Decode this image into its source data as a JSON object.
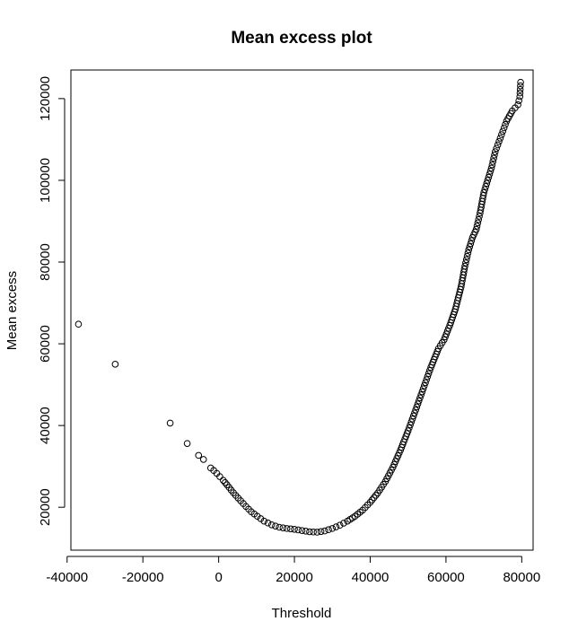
{
  "chart_data": {
    "type": "scatter",
    "title": "Mean excess plot",
    "xlabel": "Threshold",
    "ylabel": "Mean excess",
    "xlim": [
      -39000,
      83000
    ],
    "ylim": [
      9500,
      127000
    ],
    "xticks": [
      -40000,
      -20000,
      0,
      20000,
      40000,
      60000,
      80000
    ],
    "yticks": [
      20000,
      40000,
      60000,
      80000,
      100000,
      120000
    ],
    "grid": false,
    "legend": "none",
    "marker": "open-circle",
    "series": [
      {
        "points": [
          [
            -37000,
            64800
          ],
          [
            -27300,
            55000
          ],
          [
            -12800,
            40600
          ],
          [
            -8300,
            35600
          ],
          [
            -5300,
            32700
          ],
          [
            -4000,
            31700
          ],
          [
            -2100,
            29600
          ],
          [
            -1300,
            29000
          ],
          [
            -500,
            28300
          ],
          [
            300,
            27500
          ],
          [
            1200,
            26600
          ],
          [
            2200,
            25500
          ],
          [
            3300,
            24200
          ],
          [
            4500,
            22900
          ],
          [
            5800,
            21600
          ],
          [
            7200,
            20200
          ],
          [
            8600,
            18900
          ],
          [
            10200,
            17800
          ],
          [
            12000,
            16600
          ],
          [
            14000,
            15700
          ],
          [
            16000,
            15100
          ],
          [
            18000,
            14800
          ],
          [
            20000,
            14600
          ],
          [
            22000,
            14300
          ],
          [
            24000,
            14000
          ],
          [
            26000,
            13900
          ],
          [
            28000,
            14200
          ],
          [
            30000,
            14800
          ],
          [
            32000,
            15600
          ],
          [
            34000,
            16600
          ],
          [
            36000,
            17800
          ],
          [
            38000,
            19300
          ],
          [
            40000,
            21200
          ],
          [
            42000,
            23500
          ],
          [
            44000,
            26300
          ],
          [
            46000,
            29800
          ],
          [
            48000,
            34000
          ],
          [
            50000,
            38700
          ],
          [
            52000,
            43800
          ],
          [
            54000,
            49000
          ],
          [
            56000,
            54200
          ],
          [
            58000,
            58800
          ],
          [
            59500,
            61000
          ],
          [
            61000,
            64500
          ],
          [
            62500,
            68500
          ],
          [
            64000,
            74000
          ],
          [
            65000,
            79000
          ],
          [
            66000,
            83000
          ],
          [
            67000,
            86000
          ],
          [
            68000,
            88000
          ],
          [
            69000,
            92000
          ],
          [
            70000,
            97000
          ],
          [
            71000,
            100000
          ],
          [
            72000,
            103000
          ],
          [
            73000,
            107000
          ],
          [
            74000,
            109500
          ],
          [
            75000,
            112000
          ],
          [
            76000,
            114500
          ],
          [
            77500,
            117000
          ],
          [
            79000,
            118500
          ],
          [
            79500,
            120500
          ],
          [
            79700,
            124000
          ]
        ]
      }
    ]
  }
}
